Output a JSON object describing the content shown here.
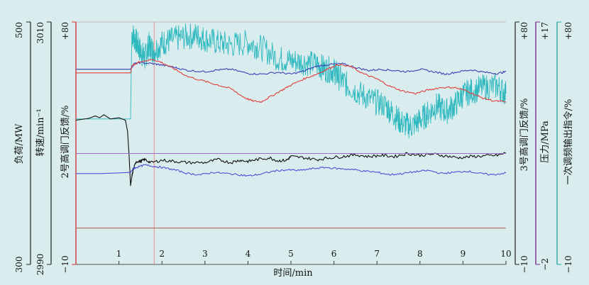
{
  "chart_data": {
    "type": "line",
    "xlabel": "时间/min",
    "x_ticks": [
      "1",
      "2",
      "3",
      "4",
      "5",
      "6",
      "7",
      "8",
      "9",
      "10"
    ],
    "xlim": [
      0,
      10
    ],
    "axes": {
      "load": {
        "label": "负荷/MW",
        "min": "300",
        "max": "500",
        "color": "#222222"
      },
      "speed": {
        "label": "转速/min⁻¹",
        "min": "2990",
        "max": "3010",
        "color": "#222222"
      },
      "valve2": {
        "label": "2号高调门反馈/%",
        "min": "−10",
        "max": "+80",
        "color": "#d23a3a"
      },
      "valve3": {
        "label": "3号高调门反馈/%",
        "min": "−10",
        "max": "+80",
        "color": "#222222"
      },
      "pressure": {
        "label": "压力/MPa",
        "min": "−2",
        "max": "+17",
        "color": "#7b2d8e"
      },
      "freq": {
        "label": "一次调频输出指令/%",
        "min": "−10",
        "max": "+80",
        "color": "#2aa7a0"
      }
    },
    "vline_x": 1.82,
    "series": [
      {
        "color": "#2fb9bf",
        "id": "cyan",
        "points": [
          [
            0,
            240
          ],
          [
            1.27,
            240
          ],
          [
            1.3,
            382
          ],
          [
            1.4,
            368
          ],
          [
            1.5,
            352
          ],
          [
            1.6,
            340
          ],
          [
            1.7,
            362
          ],
          [
            1.8,
            352
          ],
          [
            2.0,
            365
          ],
          [
            2.2,
            370
          ],
          [
            2.5,
            375
          ],
          [
            2.8,
            378
          ],
          [
            3.0,
            372
          ],
          [
            3.3,
            366
          ],
          [
            3.6,
            362
          ],
          [
            4.0,
            366
          ],
          [
            4.3,
            358
          ],
          [
            4.7,
            340
          ],
          [
            5.0,
            336
          ],
          [
            5.3,
            334
          ],
          [
            5.6,
            330
          ],
          [
            5.8,
            322
          ],
          [
            6.0,
            320
          ],
          [
            6.1,
            310
          ],
          [
            6.3,
            296
          ],
          [
            6.6,
            282
          ],
          [
            6.9,
            270
          ],
          [
            7.2,
            262
          ],
          [
            7.4,
            246
          ],
          [
            7.6,
            232
          ],
          [
            7.8,
            228
          ],
          [
            8.0,
            238
          ],
          [
            8.2,
            250
          ],
          [
            8.4,
            262
          ],
          [
            8.6,
            252
          ],
          [
            8.8,
            262
          ],
          [
            9.0,
            280
          ],
          [
            9.2,
            286
          ],
          [
            9.5,
            292
          ],
          [
            9.8,
            294
          ],
          [
            10,
            282
          ]
        ]
      },
      {
        "color": "#3b3fb4",
        "id": "blue-top",
        "points": [
          [
            0,
            322
          ],
          [
            0.7,
            322
          ],
          [
            1.27,
            322
          ],
          [
            1.35,
            331
          ],
          [
            1.5,
            333
          ],
          [
            1.8,
            331
          ],
          [
            2.0,
            329
          ],
          [
            2.3,
            325
          ],
          [
            2.6,
            320
          ],
          [
            3.0,
            318
          ],
          [
            3.3,
            321
          ],
          [
            3.6,
            322
          ],
          [
            4.0,
            315
          ],
          [
            4.3,
            314
          ],
          [
            4.7,
            317
          ],
          [
            5.0,
            314
          ],
          [
            5.3,
            319
          ],
          [
            5.6,
            327
          ],
          [
            5.9,
            330
          ],
          [
            6.2,
            331
          ],
          [
            6.5,
            325
          ],
          [
            6.8,
            320
          ],
          [
            7.1,
            322
          ],
          [
            7.4,
            320
          ],
          [
            7.7,
            318
          ],
          [
            8.0,
            322
          ],
          [
            8.3,
            318
          ],
          [
            8.6,
            314
          ],
          [
            8.9,
            318
          ],
          [
            9.2,
            321
          ],
          [
            9.5,
            317
          ],
          [
            9.8,
            315
          ],
          [
            10,
            318
          ]
        ]
      },
      {
        "color": "#e0403a",
        "id": "red",
        "points": [
          [
            0,
            316
          ],
          [
            0.8,
            316
          ],
          [
            1.27,
            316
          ],
          [
            1.3,
            328
          ],
          [
            1.5,
            335
          ],
          [
            1.8,
            338
          ],
          [
            2.0,
            333
          ],
          [
            2.3,
            322
          ],
          [
            2.6,
            310
          ],
          [
            3.0,
            302
          ],
          [
            3.3,
            296
          ],
          [
            3.6,
            290
          ],
          [
            3.9,
            276
          ],
          [
            4.1,
            270
          ],
          [
            4.3,
            268
          ],
          [
            4.5,
            276
          ],
          [
            4.8,
            288
          ],
          [
            5.0,
            296
          ],
          [
            5.3,
            306
          ],
          [
            5.6,
            314
          ],
          [
            5.9,
            324
          ],
          [
            6.1,
            330
          ],
          [
            6.4,
            326
          ],
          [
            6.7,
            314
          ],
          [
            7.0,
            306
          ],
          [
            7.3,
            294
          ],
          [
            7.6,
            286
          ],
          [
            7.9,
            282
          ],
          [
            8.2,
            288
          ],
          [
            8.5,
            292
          ],
          [
            8.8,
            292
          ],
          [
            9.1,
            286
          ],
          [
            9.4,
            276
          ],
          [
            9.7,
            270
          ],
          [
            10,
            268
          ]
        ]
      },
      {
        "color": "#111111",
        "id": "black",
        "points": [
          [
            0,
            238
          ],
          [
            0.3,
            241
          ],
          [
            0.45,
            245
          ],
          [
            0.55,
            242
          ],
          [
            0.65,
            247
          ],
          [
            0.8,
            240
          ],
          [
            1.0,
            242
          ],
          [
            1.15,
            238
          ],
          [
            1.2,
            220
          ],
          [
            1.24,
            175
          ],
          [
            1.27,
            130
          ],
          [
            1.3,
            145
          ],
          [
            1.33,
            155
          ],
          [
            1.4,
            170
          ],
          [
            1.5,
            170
          ],
          [
            1.6,
            173
          ],
          [
            1.75,
            168
          ],
          [
            2.0,
            172
          ],
          [
            2.3,
            170
          ],
          [
            2.6,
            168
          ],
          [
            3.0,
            168
          ],
          [
            3.3,
            173
          ],
          [
            3.6,
            168
          ],
          [
            3.8,
            172
          ],
          [
            4.0,
            170
          ],
          [
            4.2,
            173
          ],
          [
            4.5,
            176
          ],
          [
            4.7,
            171
          ],
          [
            4.9,
            172
          ],
          [
            5.0,
            178
          ],
          [
            5.3,
            176
          ],
          [
            5.6,
            173
          ],
          [
            5.9,
            176
          ],
          [
            6.2,
            178
          ],
          [
            6.5,
            181
          ],
          [
            6.8,
            178
          ],
          [
            7.1,
            180
          ],
          [
            7.4,
            178
          ],
          [
            7.7,
            183
          ],
          [
            8.0,
            180
          ],
          [
            8.3,
            182
          ],
          [
            8.6,
            179
          ],
          [
            8.9,
            176
          ],
          [
            9.2,
            178
          ],
          [
            9.5,
            179
          ],
          [
            9.8,
            180
          ],
          [
            10,
            184
          ]
        ]
      },
      {
        "color": "#9a6cc8",
        "id": "purple",
        "points": [
          [
            0,
            183
          ],
          [
            1.0,
            183
          ],
          [
            2.0,
            183
          ],
          [
            3.0,
            183
          ],
          [
            4.0,
            183
          ],
          [
            5.0,
            183
          ],
          [
            6.0,
            183
          ],
          [
            7.0,
            183
          ],
          [
            8.0,
            183
          ],
          [
            9.0,
            183
          ],
          [
            10,
            183
          ]
        ]
      },
      {
        "color": "#4f4fd8",
        "id": "blue-low",
        "points": [
          [
            0,
            150
          ],
          [
            0.6,
            150
          ],
          [
            1.0,
            151
          ],
          [
            1.27,
            152
          ],
          [
            1.33,
            158
          ],
          [
            1.4,
            160
          ],
          [
            1.6,
            164
          ],
          [
            1.8,
            162
          ],
          [
            2.0,
            160
          ],
          [
            2.3,
            156
          ],
          [
            2.6,
            150
          ],
          [
            2.9,
            148
          ],
          [
            3.2,
            152
          ],
          [
            3.5,
            150
          ],
          [
            3.8,
            148
          ],
          [
            4.0,
            146
          ],
          [
            4.3,
            149
          ],
          [
            4.6,
            154
          ],
          [
            4.9,
            156
          ],
          [
            5.2,
            155
          ],
          [
            5.5,
            158
          ],
          [
            5.8,
            160
          ],
          [
            6.1,
            158
          ],
          [
            6.4,
            157
          ],
          [
            6.7,
            154
          ],
          [
            7.0,
            152
          ],
          [
            7.3,
            148
          ],
          [
            7.6,
            150
          ],
          [
            7.9,
            153
          ],
          [
            8.2,
            155
          ],
          [
            8.5,
            150
          ],
          [
            8.8,
            152
          ],
          [
            9.1,
            154
          ],
          [
            9.4,
            150
          ],
          [
            9.7,
            148
          ],
          [
            10,
            151
          ]
        ]
      },
      {
        "color": "#b26a5a",
        "id": "brown",
        "points": [
          [
            0,
            60
          ],
          [
            10,
            60
          ]
        ]
      }
    ]
  }
}
